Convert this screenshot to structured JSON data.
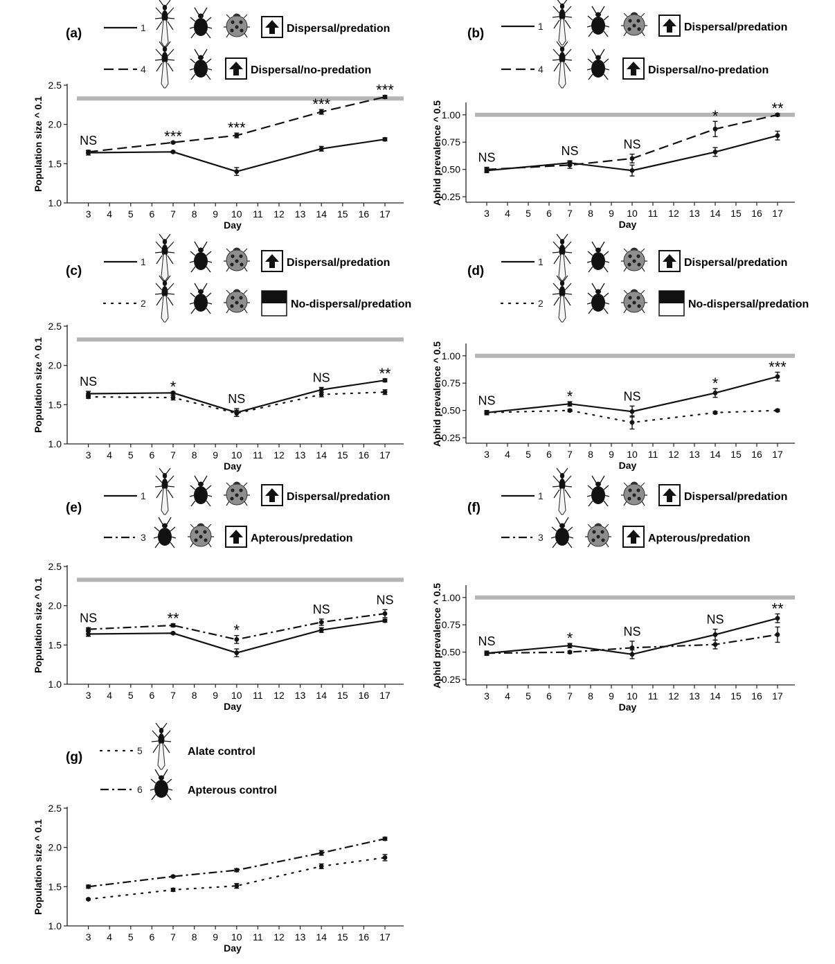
{
  "figure": {
    "x_axis_label": "Day"
  },
  "legend_text": {
    "dispersal_predation": "Dispersal/predation",
    "dispersal_no_predation": "Dispersal/no-predation",
    "no_dispersal_predation": "No-dispersal/predation",
    "apterous_predation": "Apterous/predation",
    "alate_control": "Alate control",
    "apterous_control": "Apterous control"
  },
  "chart_data": [
    {
      "panel": "(a)",
      "type": "line",
      "xlabel": "Day",
      "ylabel": "Population size ^ 0.1",
      "ylim": [
        1.0,
        2.5
      ],
      "yticks": [
        "1.0",
        "1.5",
        "2.0",
        "2.5"
      ],
      "x_categories": [
        3,
        4,
        5,
        6,
        7,
        8,
        9,
        10,
        11,
        12,
        13,
        14,
        15,
        16,
        17
      ],
      "reference_line": 2.33,
      "series": [
        {
          "name": "Dispersal/predation",
          "treatment": "1",
          "style": "solid",
          "x": [
            3,
            7,
            10,
            14,
            17
          ],
          "values": [
            1.64,
            1.65,
            1.4,
            1.69,
            1.81
          ],
          "errors": [
            0.03,
            0.01,
            0.05,
            0.03,
            0.02
          ]
        },
        {
          "name": "Dispersal/no-predation",
          "treatment": "4",
          "style": "dashed",
          "x": [
            3,
            7,
            10,
            14,
            17
          ],
          "values": [
            1.65,
            1.77,
            1.86,
            2.16,
            2.35
          ],
          "errors": [
            0.02,
            0.01,
            0.03,
            0.03,
            0.02
          ]
        }
      ],
      "significance": [
        {
          "x": 3,
          "label": "NS"
        },
        {
          "x": 7,
          "label": "***"
        },
        {
          "x": 10,
          "label": "***"
        },
        {
          "x": 14,
          "label": "***"
        },
        {
          "x": 17,
          "label": "***"
        }
      ],
      "legend": [
        {
          "num": "1",
          "style": "solid",
          "icons": [
            "alate",
            "apterous",
            "ladybird"
          ],
          "arrow": "up",
          "label": "Dispersal/predation"
        },
        {
          "num": "4",
          "style": "dashed",
          "icons": [
            "alate",
            "apterous"
          ],
          "arrow": "up",
          "label": "Dispersal/no-predation"
        }
      ]
    },
    {
      "panel": "(b)",
      "type": "line",
      "xlabel": "Day",
      "ylabel": "Aphid prevalence ^ 0.5",
      "ylim": [
        0.2,
        1.1
      ],
      "yticks": [
        "0.25",
        "0.50",
        "0.75",
        "1.00"
      ],
      "x_categories": [
        3,
        4,
        5,
        6,
        7,
        8,
        9,
        10,
        11,
        12,
        13,
        14,
        15,
        16,
        17
      ],
      "reference_line": 1.0,
      "series": [
        {
          "name": "Dispersal/predation",
          "treatment": "1",
          "style": "solid",
          "x": [
            3,
            7,
            10,
            14,
            17
          ],
          "values": [
            0.49,
            0.56,
            0.49,
            0.66,
            0.81
          ],
          "errors": [
            0.02,
            0.02,
            0.05,
            0.04,
            0.04
          ]
        },
        {
          "name": "Dispersal/no-predation",
          "treatment": "4",
          "style": "dashed",
          "x": [
            3,
            7,
            10,
            14,
            17
          ],
          "values": [
            0.5,
            0.54,
            0.6,
            0.87,
            1.0
          ],
          "errors": [
            0.02,
            0.03,
            0.04,
            0.07,
            0.01
          ]
        }
      ],
      "significance": [
        {
          "x": 3,
          "label": "NS"
        },
        {
          "x": 7,
          "label": "NS"
        },
        {
          "x": 10,
          "label": "NS"
        },
        {
          "x": 14,
          "label": "*"
        },
        {
          "x": 17,
          "label": "**"
        }
      ],
      "legend": [
        {
          "num": "1",
          "style": "solid",
          "icons": [
            "alate",
            "apterous",
            "ladybird"
          ],
          "arrow": "up",
          "label": "Dispersal/predation"
        },
        {
          "num": "4",
          "style": "dashed",
          "icons": [
            "alate",
            "apterous"
          ],
          "arrow": "up",
          "label": "Dispersal/no-predation"
        }
      ]
    },
    {
      "panel": "(c)",
      "type": "line",
      "xlabel": "Day",
      "ylabel": "Population size ^ 0.1",
      "ylim": [
        1.0,
        2.5
      ],
      "yticks": [
        "1.0",
        "1.5",
        "2.0",
        "2.5"
      ],
      "x_categories": [
        3,
        4,
        5,
        6,
        7,
        8,
        9,
        10,
        11,
        12,
        13,
        14,
        15,
        16,
        17
      ],
      "reference_line": 2.33,
      "series": [
        {
          "name": "Dispersal/predation",
          "treatment": "1",
          "style": "solid",
          "x": [
            3,
            7,
            10,
            14,
            17
          ],
          "values": [
            1.64,
            1.65,
            1.4,
            1.69,
            1.81
          ],
          "errors": [
            0.03,
            0.01,
            0.05,
            0.03,
            0.02
          ]
        },
        {
          "name": "No-dispersal/predation",
          "treatment": "2",
          "style": "dotted",
          "x": [
            3,
            7,
            10,
            14,
            17
          ],
          "values": [
            1.6,
            1.59,
            1.39,
            1.63,
            1.66
          ],
          "errors": [
            0.02,
            0.03,
            0.04,
            0.03,
            0.03
          ]
        }
      ],
      "significance": [
        {
          "x": 3,
          "label": "NS"
        },
        {
          "x": 7,
          "label": "*"
        },
        {
          "x": 10,
          "label": "NS"
        },
        {
          "x": 14,
          "label": "NS"
        },
        {
          "x": 17,
          "label": "**"
        }
      ],
      "legend": [
        {
          "num": "1",
          "style": "solid",
          "icons": [
            "alate",
            "apterous",
            "ladybird"
          ],
          "arrow": "up",
          "label": "Dispersal/predation"
        },
        {
          "num": "2",
          "style": "dotted",
          "icons": [
            "alate",
            "apterous",
            "ladybird"
          ],
          "arrow": "blocked",
          "label": "No-dispersal/predation"
        }
      ]
    },
    {
      "panel": "(d)",
      "type": "line",
      "xlabel": "Day",
      "ylabel": "Aphid prevalence ^ 0.5",
      "ylim": [
        0.2,
        1.1
      ],
      "yticks": [
        "0.25",
        "0.50",
        "0.75",
        "1.00"
      ],
      "x_categories": [
        3,
        4,
        5,
        6,
        7,
        8,
        9,
        10,
        11,
        12,
        13,
        14,
        15,
        16,
        17
      ],
      "reference_line": 1.0,
      "series": [
        {
          "name": "Dispersal/predation",
          "treatment": "1",
          "style": "solid",
          "x": [
            3,
            7,
            10,
            14,
            17
          ],
          "values": [
            0.48,
            0.56,
            0.49,
            0.66,
            0.81
          ],
          "errors": [
            0.02,
            0.02,
            0.05,
            0.04,
            0.04
          ]
        },
        {
          "name": "No-dispersal/predation",
          "treatment": "2",
          "style": "dotted",
          "x": [
            3,
            7,
            10,
            14,
            17
          ],
          "values": [
            0.48,
            0.5,
            0.39,
            0.48,
            0.5
          ],
          "errors": [
            0.01,
            0.01,
            0.06,
            0.01,
            0.01
          ]
        }
      ],
      "significance": [
        {
          "x": 3,
          "label": "NS"
        },
        {
          "x": 7,
          "label": "*"
        },
        {
          "x": 10,
          "label": "NS"
        },
        {
          "x": 14,
          "label": "*"
        },
        {
          "x": 17,
          "label": "***"
        }
      ],
      "legend": [
        {
          "num": "1",
          "style": "solid",
          "icons": [
            "alate",
            "apterous",
            "ladybird"
          ],
          "arrow": "up",
          "label": "Dispersal/predation"
        },
        {
          "num": "2",
          "style": "dotted",
          "icons": [
            "alate",
            "apterous",
            "ladybird"
          ],
          "arrow": "blocked",
          "label": "No-dispersal/predation"
        }
      ]
    },
    {
      "panel": "(e)",
      "type": "line",
      "xlabel": "Day",
      "ylabel": "Population size ^ 0.1",
      "ylim": [
        1.0,
        2.5
      ],
      "yticks": [
        "1.0",
        "1.5",
        "2.0",
        "2.5"
      ],
      "x_categories": [
        3,
        4,
        5,
        6,
        7,
        8,
        9,
        10,
        11,
        12,
        13,
        14,
        15,
        16,
        17
      ],
      "reference_line": 2.33,
      "series": [
        {
          "name": "Dispersal/predation",
          "treatment": "1",
          "style": "solid",
          "x": [
            3,
            7,
            10,
            14,
            17
          ],
          "values": [
            1.64,
            1.65,
            1.4,
            1.69,
            1.81
          ],
          "errors": [
            0.03,
            0.01,
            0.05,
            0.03,
            0.02
          ]
        },
        {
          "name": "Apterous/predation",
          "treatment": "3",
          "style": "dashdot",
          "x": [
            3,
            7,
            10,
            14,
            17
          ],
          "values": [
            1.7,
            1.75,
            1.57,
            1.79,
            1.9
          ],
          "errors": [
            0.02,
            0.02,
            0.05,
            0.04,
            0.05
          ]
        }
      ],
      "significance": [
        {
          "x": 3,
          "label": "NS"
        },
        {
          "x": 7,
          "label": "**"
        },
        {
          "x": 10,
          "label": "*"
        },
        {
          "x": 14,
          "label": "NS"
        },
        {
          "x": 17,
          "label": "NS"
        }
      ],
      "legend": [
        {
          "num": "1",
          "style": "solid",
          "icons": [
            "alate",
            "apterous",
            "ladybird"
          ],
          "arrow": "up",
          "label": "Dispersal/predation"
        },
        {
          "num": "3",
          "style": "dashdot",
          "icons": [
            "apterous",
            "ladybird"
          ],
          "arrow": "up",
          "label": "Apterous/predation"
        }
      ]
    },
    {
      "panel": "(f)",
      "type": "line",
      "xlabel": "Day",
      "ylabel": "Aphid prevalence ^ 0.5",
      "ylim": [
        0.2,
        1.1
      ],
      "yticks": [
        "0.25",
        "0.50",
        "0.75",
        "1.00"
      ],
      "x_categories": [
        3,
        4,
        5,
        6,
        7,
        8,
        9,
        10,
        11,
        12,
        13,
        14,
        15,
        16,
        17
      ],
      "reference_line": 1.0,
      "series": [
        {
          "name": "Dispersal/predation",
          "treatment": "1",
          "style": "solid",
          "x": [
            3,
            7,
            10,
            14,
            17
          ],
          "values": [
            0.49,
            0.56,
            0.48,
            0.66,
            0.81
          ],
          "errors": [
            0.02,
            0.02,
            0.04,
            0.05,
            0.04
          ]
        },
        {
          "name": "Apterous/predation",
          "treatment": "3",
          "style": "dashdot",
          "x": [
            3,
            7,
            10,
            14,
            17
          ],
          "values": [
            0.49,
            0.5,
            0.54,
            0.57,
            0.66
          ],
          "errors": [
            0.01,
            0.01,
            0.06,
            0.04,
            0.07
          ]
        }
      ],
      "significance": [
        {
          "x": 3,
          "label": "NS"
        },
        {
          "x": 7,
          "label": "*"
        },
        {
          "x": 10,
          "label": "NS"
        },
        {
          "x": 14,
          "label": "NS"
        },
        {
          "x": 17,
          "label": "**"
        }
      ],
      "legend": [
        {
          "num": "1",
          "style": "solid",
          "icons": [
            "alate",
            "apterous",
            "ladybird"
          ],
          "arrow": "up",
          "label": "Dispersal/predation"
        },
        {
          "num": "3",
          "style": "dashdot",
          "icons": [
            "apterous",
            "ladybird"
          ],
          "arrow": "up",
          "label": "Apterous/predation"
        }
      ]
    },
    {
      "panel": "(g)",
      "type": "line",
      "xlabel": "Day",
      "ylabel": "Population size ^ 0.1",
      "ylim": [
        1.0,
        2.5
      ],
      "yticks": [
        "1.0",
        "1.5",
        "2.0",
        "2.5"
      ],
      "x_categories": [
        3,
        4,
        5,
        6,
        7,
        8,
        9,
        10,
        11,
        12,
        13,
        14,
        15,
        16,
        17
      ],
      "reference_line": null,
      "series": [
        {
          "name": "Alate control",
          "treatment": "5",
          "style": "dotted",
          "x": [
            3,
            7,
            10,
            14,
            17
          ],
          "values": [
            1.34,
            1.46,
            1.51,
            1.76,
            1.87
          ],
          "errors": [
            0.01,
            0.02,
            0.03,
            0.03,
            0.04
          ]
        },
        {
          "name": "Apterous control",
          "treatment": "6",
          "style": "dashdot",
          "x": [
            3,
            7,
            10,
            14,
            17
          ],
          "values": [
            1.5,
            1.63,
            1.71,
            1.93,
            2.11
          ],
          "errors": [
            0.02,
            0.01,
            0.02,
            0.03,
            0.02
          ]
        }
      ],
      "significance": [],
      "legend": [
        {
          "num": "5",
          "style": "dotted",
          "icons": [
            "alate"
          ],
          "arrow": null,
          "label": "Alate control"
        },
        {
          "num": "6",
          "style": "dashdot",
          "icons": [
            "apterous"
          ],
          "arrow": null,
          "label": "Apterous control"
        }
      ]
    }
  ]
}
